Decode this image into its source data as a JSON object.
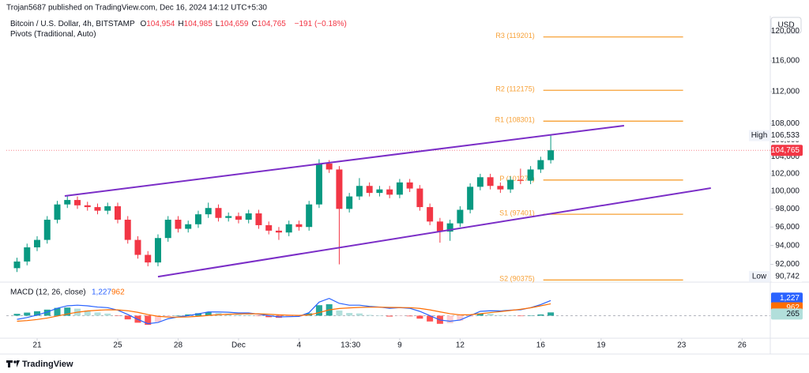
{
  "header": {
    "publisher": "Trojan5687 published on TradingView.com, Dec 16, 2024 14:12 UTC+5:30",
    "currency": "USD",
    "brand": "TradingView"
  },
  "chart_data": [
    {
      "type": "candlestick",
      "title": "Bitcoin / U.S. Dollar, 4h, BITSTAMP",
      "legend": [
        {
          "key": "O",
          "label": "104,954"
        },
        {
          "key": "H",
          "label": "104,985"
        },
        {
          "key": "L",
          "label": "104,659"
        },
        {
          "key": "C",
          "label": "104,765"
        }
      ],
      "change": "−191 (−0.18%)",
      "subtitle": "Pivots (Traditional, Auto)",
      "x": [
        20,
        20.5,
        21,
        21.5,
        22,
        22.5,
        23,
        23.5,
        24,
        24.5,
        25,
        25.5,
        26,
        26.5,
        27,
        27.5,
        28,
        28.5,
        29,
        29.5,
        30,
        30.5,
        31,
        31.5,
        32,
        32.5,
        33,
        33.5,
        34,
        34.5,
        35,
        35.5,
        36,
        36.5,
        37,
        37.5,
        38,
        38.5,
        39,
        39.5,
        40,
        40.5,
        41,
        41.5,
        42,
        42.5,
        43,
        43.5,
        44,
        44.5,
        45,
        45.5,
        46,
        46.5
      ],
      "open": [
        91600,
        92300,
        93800,
        94600,
        96800,
        98500,
        99000,
        98400,
        98200,
        97800,
        98300,
        96800,
        94600,
        93000,
        92200,
        94800,
        96800,
        95800,
        96300,
        97400,
        98100,
        97000,
        97200,
        96800,
        97500,
        96200,
        95600,
        95400,
        96300,
        96000,
        98500,
        103200,
        102500,
        98000,
        99400,
        100600,
        99800,
        100200,
        99600,
        101000,
        100300,
        98200,
        96600,
        95500,
        96400,
        97900,
        100500,
        101600,
        100600,
        100200,
        101300,
        101200,
        102500,
        103600
      ],
      "high": [
        92700,
        94200,
        95000,
        97200,
        98900,
        99500,
        99400,
        98800,
        98600,
        98700,
        98700,
        97200,
        95000,
        93400,
        95200,
        97200,
        97200,
        96700,
        97800,
        98700,
        98500,
        97600,
        97600,
        97900,
        97900,
        96600,
        96000,
        96700,
        96700,
        98900,
        103700,
        103600,
        102900,
        99800,
        101500,
        101000,
        100600,
        100600,
        101400,
        101400,
        100700,
        98600,
        97000,
        96800,
        98300,
        100900,
        102000,
        102000,
        101000,
        101700,
        102600,
        102900,
        104000,
        106533
      ],
      "low": [
        91200,
        91900,
        93400,
        94200,
        96400,
        98100,
        98000,
        97800,
        97400,
        97400,
        96400,
        94200,
        92600,
        91800,
        91800,
        94400,
        95400,
        95400,
        95900,
        97000,
        96600,
        96600,
        96400,
        96400,
        95800,
        95200,
        94600,
        95000,
        95600,
        95600,
        98100,
        102100,
        92000,
        97600,
        99000,
        99400,
        99400,
        99200,
        99200,
        99900,
        97800,
        96200,
        94300,
        94500,
        96000,
        97500,
        100100,
        100200,
        99800,
        99800,
        100800,
        100800,
        102100,
        103200
      ],
      "close": [
        92300,
        93800,
        94600,
        96800,
        98500,
        99000,
        98400,
        98200,
        97800,
        98300,
        96800,
        94600,
        93000,
        92200,
        94800,
        96800,
        95800,
        96300,
        97400,
        98100,
        97000,
        97200,
        96800,
        97500,
        96200,
        95600,
        95400,
        96300,
        96000,
        98500,
        103200,
        102500,
        98000,
        99400,
        100600,
        99800,
        100200,
        99600,
        101000,
        100300,
        98200,
        96600,
        95500,
        96400,
        97900,
        100500,
        101600,
        100600,
        100200,
        101300,
        101200,
        102500,
        103600,
        104765
      ],
      "up_color": "#089981",
      "down_color": "#f23645",
      "xlim": [
        19.47,
        57.4
      ],
      "xticks": [
        {
          "value": 21,
          "label": "21"
        },
        {
          "value": 25,
          "label": "25"
        },
        {
          "value": 28,
          "label": "28"
        },
        {
          "value": 31,
          "label": "Dec"
        },
        {
          "value": 34,
          "label": "4"
        },
        {
          "value": 36.56,
          "label": "13:30"
        },
        {
          "value": 39,
          "label": "9"
        },
        {
          "value": 42,
          "label": "12"
        },
        {
          "value": 46,
          "label": "16"
        },
        {
          "value": 49,
          "label": "19"
        },
        {
          "value": 53,
          "label": "23"
        },
        {
          "value": 56,
          "label": "26"
        }
      ],
      "ylim": [
        90320,
        121890
      ],
      "log_scale": true,
      "grid": false,
      "yticks": [
        {
          "value": 92000,
          "label": "92,000"
        },
        {
          "value": 94000,
          "label": "94,000"
        },
        {
          "value": 96000,
          "label": "96,000"
        },
        {
          "value": 98000,
          "label": "98,000"
        },
        {
          "value": 100000,
          "label": "100,000"
        },
        {
          "value": 102000,
          "label": "102,000"
        },
        {
          "value": 104000,
          "label": "104,000"
        },
        {
          "value": 106000,
          "label": "106,000"
        },
        {
          "value": 108000,
          "label": "108,000"
        },
        {
          "value": 112000,
          "label": "112,000"
        },
        {
          "value": 116000,
          "label": "116,000"
        },
        {
          "value": 120000,
          "label": "120,000"
        }
      ],
      "pivots": [
        {
          "label": "R3 (119201)",
          "value": 119201
        },
        {
          "label": "R2 (112175)",
          "value": 112175
        },
        {
          "label": "R1 (108301)",
          "value": 108301
        },
        {
          "label": "P (101275)",
          "value": 101275
        },
        {
          "label": "S1 (97401)",
          "value": 97401
        },
        {
          "label": "S2 (90375)",
          "value": 90375
        }
      ],
      "pivot_color": "#f7a035",
      "trendlines": [
        {
          "x": [
            22.37,
            50.14
          ],
          "y": [
            99450,
            107750
          ]
        },
        {
          "x": [
            27.0,
            54.45
          ],
          "y": [
            90720,
            100350
          ]
        }
      ],
      "trendline_color": "#7b2ec7",
      "last_price": {
        "value": 104765,
        "label": "104,765",
        "color": "#f23645"
      },
      "high_marker": {
        "name": "High",
        "value": 106533,
        "label": "106,533"
      },
      "low_marker": {
        "name": "Low",
        "value": 90742,
        "label": "90,742"
      }
    },
    {
      "type": "macd",
      "title": "MACD (12, 26, close)",
      "x": [
        20,
        20.5,
        21,
        21.5,
        22,
        22.5,
        23,
        23.5,
        24,
        24.5,
        25,
        25.5,
        26,
        26.5,
        27,
        27.5,
        28,
        28.5,
        29,
        29.5,
        30,
        30.5,
        31,
        31.5,
        32,
        32.5,
        33,
        33.5,
        34,
        34.5,
        35,
        35.5,
        36,
        36.5,
        37,
        37.5,
        38,
        38.5,
        39,
        39.5,
        40,
        40.5,
        41,
        41.5,
        42,
        42.5,
        43,
        43.5,
        44,
        44.5,
        45,
        45.5,
        46,
        46.5
      ],
      "xlim": [
        19.47,
        57.4
      ],
      "ylim": [
        -1700,
        2400
      ],
      "series": [
        {
          "color": "#2962ff",
          "value_label": "1,227",
          "values": [
            -300,
            -150,
            50,
            300,
            600,
            800,
            850,
            800,
            700,
            650,
            450,
            100,
            -300,
            -650,
            -550,
            -250,
            -100,
            0,
            150,
            300,
            300,
            280,
            220,
            220,
            120,
            0,
            -100,
            -80,
            -60,
            250,
            1100,
            1400,
            1000,
            850,
            850,
            750,
            700,
            600,
            650,
            600,
            350,
            0,
            -350,
            -450,
            -350,
            0,
            350,
            400,
            380,
            450,
            480,
            650,
            900,
            1227
          ]
        },
        {
          "color": "#ff6d00",
          "value_label": "962",
          "values": [
            -450,
            -400,
            -310,
            -190,
            -30,
            140,
            280,
            380,
            440,
            480,
            470,
            400,
            270,
            90,
            -50,
            -110,
            -120,
            -100,
            -50,
            20,
            80,
            120,
            140,
            160,
            150,
            120,
            70,
            40,
            20,
            60,
            250,
            470,
            580,
            630,
            670,
            690,
            690,
            670,
            660,
            650,
            590,
            470,
            310,
            160,
            60,
            80,
            160,
            250,
            330,
            420,
            520,
            640,
            800,
            962
          ]
        }
      ],
      "histogram": {
        "value_label": "265",
        "colors": [
          "#26a69a",
          "#b2dfdb",
          "#ff5252",
          "#ffcdd2"
        ],
        "values": [
          150,
          250,
          360,
          490,
          630,
          660,
          570,
          420,
          260,
          170,
          -20,
          -300,
          -570,
          -740,
          -500,
          -140,
          20,
          100,
          200,
          280,
          220,
          160,
          80,
          60,
          -30,
          -120,
          -170,
          -120,
          -80,
          190,
          850,
          930,
          420,
          220,
          180,
          60,
          10,
          -70,
          -10,
          -50,
          -240,
          -470,
          -660,
          -610,
          -410,
          -80,
          190,
          150,
          50,
          30,
          -40,
          10,
          100,
          265
        ]
      }
    }
  ]
}
